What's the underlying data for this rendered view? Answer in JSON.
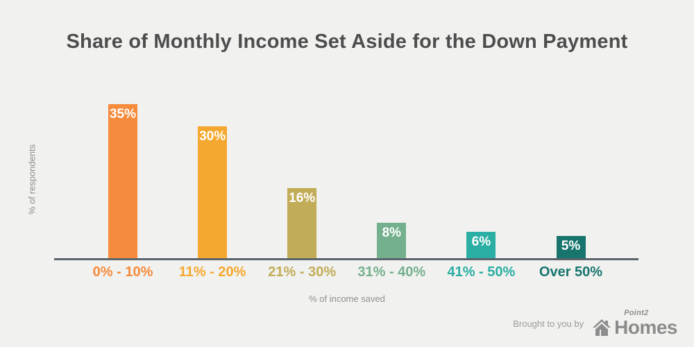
{
  "title": "Share of Monthly Income Set Aside for the Down Payment",
  "chart_data": {
    "type": "bar",
    "title": "Share of Monthly Income Set Aside for the Down Payment",
    "categories": [
      "0% - 10%",
      "11% - 20%",
      "21% - 30%",
      "31% - 40%",
      "41% - 50%",
      "Over 50%"
    ],
    "values": [
      35,
      30,
      16,
      8,
      6,
      5
    ],
    "value_labels": [
      "35%",
      "30%",
      "16%",
      "8%",
      "6%",
      "5%"
    ],
    "bar_colors": [
      "#f58b3c",
      "#f5a82f",
      "#c1ac58",
      "#74b08d",
      "#2baea4",
      "#17756e"
    ],
    "xlabel": "% of income saved",
    "ylabel": "% of respondents",
    "ylim": [
      0,
      38
    ],
    "grid": false,
    "legend": "none",
    "value_label_position": "inside-top",
    "value_label_color": "#ffffff"
  },
  "footer": {
    "attribution": "Brought to you by",
    "brand_top": "Point2",
    "brand_bottom": "Homes",
    "brand_icon": "house-icon",
    "brand_color": "#8c8c8c"
  },
  "colors": {
    "background": "#f1f1ef",
    "axis_line": "#5a646d",
    "title_text": "#4d4d4d",
    "axis_label_text": "#8f8f8f"
  }
}
